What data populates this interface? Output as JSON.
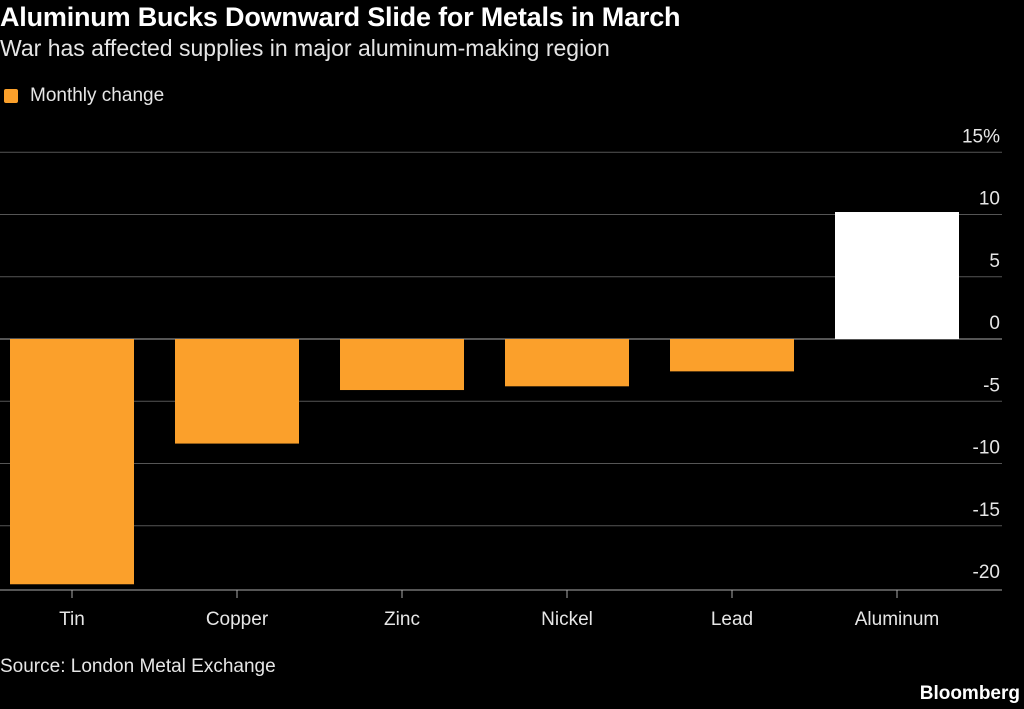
{
  "title": "Aluminum Bucks Downward Slide for Metals in March",
  "subtitle": "War has affected supplies in major aluminum-making region",
  "source": "Source: London Metal Exchange",
  "brand": "Bloomberg",
  "colors": {
    "negative": "#fba02b",
    "positive": "#ffffff",
    "grid": "#555555",
    "background": "#000000"
  },
  "chart_data": {
    "type": "bar",
    "title": "Aluminum Bucks Downward Slide for Metals in March",
    "categories": [
      "Tin",
      "Copper",
      "Zinc",
      "Nickel",
      "Lead",
      "Aluminum"
    ],
    "series": [
      {
        "name": "Monthly change",
        "values": [
          -19.7,
          -8.4,
          -4.1,
          -3.8,
          -2.6,
          10.2
        ]
      }
    ],
    "ylim": [
      -20,
      15
    ],
    "yticks": [
      15,
      10,
      5,
      0,
      -5,
      -10,
      -15,
      -20
    ],
    "ytick_labels": [
      "15%",
      "10",
      "5",
      "0",
      "-5",
      "-10",
      "-15",
      "-20"
    ],
    "legend": "top-left",
    "grid": true
  }
}
